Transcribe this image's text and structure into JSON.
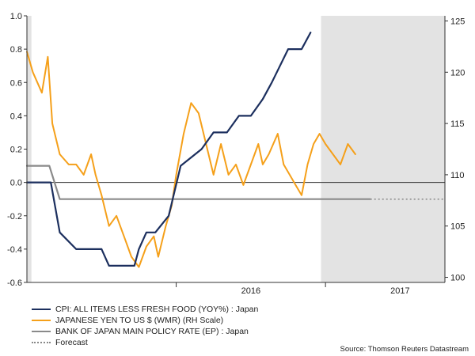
{
  "chart_data": {
    "type": "line",
    "left_axis": {
      "ylim": [
        -0.6,
        1.0
      ],
      "ticks": [
        "1.0",
        "0.8",
        "0.6",
        "0.4",
        "0.2",
        "0.0",
        "-0.2",
        "-0.4",
        "-0.6"
      ]
    },
    "right_axis": {
      "ylim": [
        99.5,
        125.5
      ],
      "ticks": [
        "125",
        "120",
        "115",
        "110",
        "105",
        "100"
      ]
    },
    "x_range": [
      2015.0,
      2017.8
    ],
    "x_ticks": [
      {
        "label": "2016",
        "x": 2016.5
      },
      {
        "label": "2017",
        "x": 2017.5
      }
    ],
    "year_dividers": [
      2016.0,
      2017.0
    ],
    "shaded_regions": [
      [
        2015.0,
        2015.03
      ],
      [
        2016.97,
        2017.8
      ]
    ],
    "series": [
      {
        "name": "CPI: ALL ITEMS LESS FRESH FOOD (YOY%) : Japan",
        "axis": "left",
        "color": "#1c2f5e",
        "points": [
          [
            2015.0,
            0.0
          ],
          [
            2015.16,
            0.0
          ],
          [
            2015.22,
            -0.3
          ],
          [
            2015.33,
            -0.4
          ],
          [
            2015.5,
            -0.4
          ],
          [
            2015.55,
            -0.5
          ],
          [
            2015.72,
            -0.5
          ],
          [
            2015.75,
            -0.4
          ],
          [
            2015.8,
            -0.3
          ],
          [
            2015.86,
            -0.3
          ],
          [
            2015.95,
            -0.2
          ],
          [
            2016.03,
            0.1
          ],
          [
            2016.17,
            0.2
          ],
          [
            2016.25,
            0.3
          ],
          [
            2016.34,
            0.3
          ],
          [
            2016.42,
            0.4
          ],
          [
            2016.5,
            0.4
          ],
          [
            2016.58,
            0.5
          ],
          [
            2016.64,
            0.6
          ],
          [
            2016.75,
            0.8
          ],
          [
            2016.84,
            0.8
          ],
          [
            2016.9,
            0.9
          ]
        ]
      },
      {
        "name": "JAPANESE YEN TO US $ (WMR) (RH Scale)",
        "axis": "right",
        "color": "#f5a01a",
        "points": [
          [
            2015.0,
            122
          ],
          [
            2015.04,
            120
          ],
          [
            2015.1,
            118
          ],
          [
            2015.14,
            121.5
          ],
          [
            2015.17,
            115
          ],
          [
            2015.22,
            112
          ],
          [
            2015.28,
            111
          ],
          [
            2015.33,
            111
          ],
          [
            2015.38,
            110
          ],
          [
            2015.43,
            112
          ],
          [
            2015.46,
            110
          ],
          [
            2015.5,
            108
          ],
          [
            2015.55,
            105
          ],
          [
            2015.6,
            106
          ],
          [
            2015.65,
            104
          ],
          [
            2015.7,
            102
          ],
          [
            2015.75,
            101
          ],
          [
            2015.8,
            103
          ],
          [
            2015.85,
            104
          ],
          [
            2015.88,
            102
          ],
          [
            2015.93,
            105
          ],
          [
            2015.97,
            107
          ],
          [
            2016.0,
            110
          ],
          [
            2016.05,
            114
          ],
          [
            2016.1,
            117
          ],
          [
            2016.15,
            116
          ],
          [
            2016.2,
            113
          ],
          [
            2016.25,
            110
          ],
          [
            2016.3,
            113
          ],
          [
            2016.35,
            110
          ],
          [
            2016.4,
            111
          ],
          [
            2016.45,
            109
          ],
          [
            2016.5,
            111
          ],
          [
            2016.55,
            113
          ],
          [
            2016.58,
            111
          ],
          [
            2016.62,
            112
          ],
          [
            2016.68,
            114
          ],
          [
            2016.72,
            111
          ],
          [
            2016.76,
            110
          ],
          [
            2016.8,
            109
          ],
          [
            2016.84,
            108
          ],
          [
            2016.88,
            111
          ],
          [
            2016.92,
            113
          ],
          [
            2016.96,
            114
          ],
          [
            2017.0,
            113
          ],
          [
            2017.05,
            112
          ],
          [
            2017.1,
            111
          ],
          [
            2017.15,
            113
          ],
          [
            2017.2,
            112
          ]
        ]
      },
      {
        "name": "BANK OF JAPAN MAIN POLICY RATE (EP) : Japan",
        "axis": "left",
        "color": "#8a8a8a",
        "points": [
          [
            2015.0,
            0.1
          ],
          [
            2015.15,
            0.1
          ],
          [
            2015.22,
            -0.1
          ],
          [
            2017.3,
            -0.1
          ]
        ]
      }
    ],
    "forecast": {
      "from_x": 2017.3,
      "to_x": 2017.8,
      "value": -0.1
    }
  },
  "legend": {
    "items": [
      {
        "label": "CPI: ALL ITEMS LESS FRESH FOOD (YOY%) : Japan",
        "color": "#1c2f5e",
        "style": "solid"
      },
      {
        "label": "JAPANESE YEN TO US $ (WMR) (RH Scale)",
        "color": "#f5a01a",
        "style": "solid"
      },
      {
        "label": "BANK OF JAPAN MAIN POLICY RATE (EP) : Japan",
        "color": "#8a8a8a",
        "style": "solid"
      },
      {
        "label": "Forecast",
        "color": "#888888",
        "style": "dotted"
      }
    ]
  },
  "source": "Source: Thomson Reuters Datastream"
}
